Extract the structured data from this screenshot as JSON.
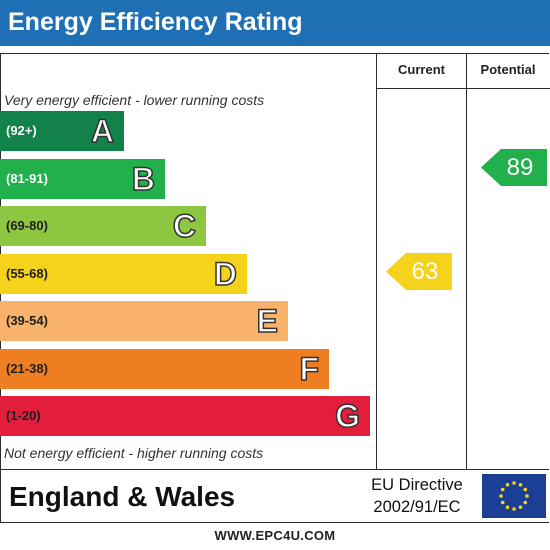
{
  "title": "Energy Efficiency Rating",
  "columns": {
    "current": "Current",
    "potential": "Potential"
  },
  "notes": {
    "top": "Very energy efficient - lower running costs",
    "bottom": "Not energy efficient - higher running costs"
  },
  "chart_data": {
    "type": "bar",
    "title": "Energy Efficiency Rating",
    "categories": [
      "A",
      "B",
      "C",
      "D",
      "E",
      "F",
      "G"
    ],
    "bands": [
      {
        "letter": "A",
        "range": "(92+)",
        "color": "#12824a",
        "text_color": "#ffffff"
      },
      {
        "letter": "B",
        "range": "(81-91)",
        "color": "#21b04b",
        "text_color": "#ffffff"
      },
      {
        "letter": "C",
        "range": "(69-80)",
        "color": "#8dc640",
        "text_color": "#1f1f1f"
      },
      {
        "letter": "D",
        "range": "(55-68)",
        "color": "#f5d21b",
        "text_color": "#1f1f1f"
      },
      {
        "letter": "E",
        "range": "(39-54)",
        "color": "#f8b26a",
        "text_color": "#1f1f1f"
      },
      {
        "letter": "F",
        "range": "(21-38)",
        "color": "#ef7d22",
        "text_color": "#1f1f1f"
      },
      {
        "letter": "G",
        "range": "(1-20)",
        "color": "#e31d3c",
        "text_color": "#1f1f1f"
      }
    ],
    "current": {
      "value": "63",
      "band": "D",
      "color": "#f5d21b"
    },
    "potential": {
      "value": "89",
      "band": "B",
      "color": "#21b04b"
    }
  },
  "footer": {
    "region": "England & Wales",
    "directive_line1": "EU Directive",
    "directive_line2": "2002/91/EC",
    "flag_color": "#1b3f94",
    "star_color": "#f5d21b"
  },
  "website": "WWW.EPC4U.COM"
}
